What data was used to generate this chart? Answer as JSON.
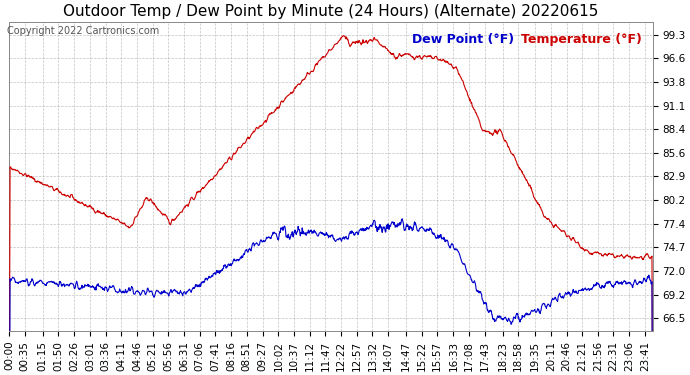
{
  "title": "Outdoor Temp / Dew Point by Minute (24 Hours) (Alternate) 20220615",
  "copyright": "Copyright 2022 Cartronics.com",
  "legend_dew": "Dew Point (°F)",
  "legend_temp": "Temperature (°F)",
  "yticks": [
    66.5,
    69.2,
    72.0,
    74.7,
    77.4,
    80.2,
    82.9,
    85.6,
    88.4,
    91.1,
    93.8,
    96.6,
    99.3
  ],
  "ymin": 65.0,
  "ymax": 100.8,
  "temp_color": "#cc0000",
  "dew_color": "#0000cc",
  "background_color": "#ffffff",
  "grid_color": "#aaaaaa",
  "title_fontsize": 11,
  "tick_fontsize": 7.5,
  "legend_fontsize": 9,
  "xtick_labels": [
    "00:00",
    "00:35",
    "01:15",
    "01:50",
    "02:26",
    "03:01",
    "03:36",
    "04:11",
    "04:46",
    "05:21",
    "05:56",
    "06:31",
    "07:06",
    "07:41",
    "08:16",
    "08:51",
    "09:27",
    "10:02",
    "10:37",
    "11:12",
    "11:47",
    "12:22",
    "12:57",
    "13:32",
    "14:07",
    "14:47",
    "15:22",
    "15:57",
    "16:33",
    "17:08",
    "17:43",
    "18:23",
    "18:58",
    "19:35",
    "20:11",
    "20:46",
    "21:21",
    "21:56",
    "22:31",
    "23:06",
    "23:41"
  ]
}
